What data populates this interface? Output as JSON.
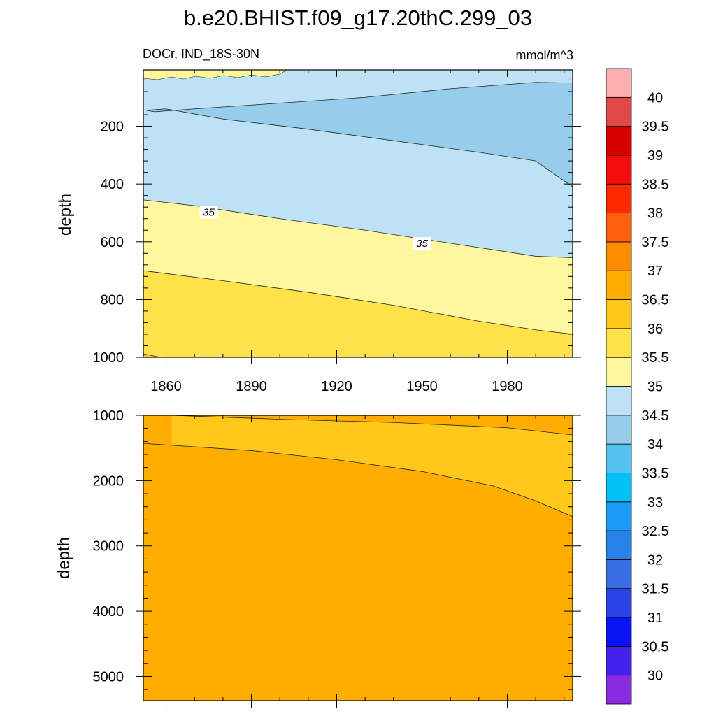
{
  "title": "b.e20.BHIST.f09_g17.20thC.299_03",
  "subtitle_left": "DOCr, IND_18S-30N",
  "subtitle_right": "mmol/m^3",
  "chart_data": [
    {
      "type": "heatmap",
      "name": "upper",
      "xlabel": "",
      "ylabel": "depth",
      "xlim": [
        1852,
        2003
      ],
      "ylim": [
        1000,
        5
      ],
      "xticks": [
        1860,
        1890,
        1920,
        1950,
        1980
      ],
      "yticks": [
        200,
        400,
        600,
        800,
        1000
      ],
      "contour_labels": [
        {
          "text": "35",
          "year": 1875,
          "depth": 500
        },
        {
          "text": "35",
          "year": 1950,
          "depth": 608
        }
      ],
      "boundaries": [
        {
          "level": 35.0,
          "points": [
            [
              1852,
              455
            ],
            [
              1870,
              475
            ],
            [
              1900,
              520
            ],
            [
              1930,
              560
            ],
            [
              1960,
              605
            ],
            [
              1990,
              650
            ],
            [
              2003,
              655
            ]
          ]
        },
        {
          "level": 35.5,
          "points": [
            [
              1852,
              700
            ],
            [
              1880,
              735
            ],
            [
              1910,
              775
            ],
            [
              1940,
              820
            ],
            [
              1970,
              875
            ],
            [
              1990,
              905
            ],
            [
              2003,
              920
            ]
          ]
        },
        {
          "level": 36.0,
          "points": [
            [
              1852,
              988
            ],
            [
              1858,
              1000
            ]
          ]
        },
        {
          "level": 34.0,
          "points": [
            [
              1853,
              145
            ],
            [
              1860,
              140
            ],
            [
              1880,
              175
            ],
            [
              1910,
              210
            ],
            [
              1940,
              250
            ],
            [
              1970,
              290
            ],
            [
              1990,
              320
            ],
            [
              2003,
              410
            ],
            [
              2003,
              50
            ],
            [
              1990,
              48
            ],
            [
              1960,
              70
            ],
            [
              1930,
              100
            ],
            [
              1900,
              120
            ],
            [
              1870,
              140
            ],
            [
              1856,
              150
            ]
          ],
          "closed": true
        }
      ],
      "fill_default": 34.5
    },
    {
      "type": "heatmap",
      "name": "lower",
      "xlabel": "",
      "ylabel": "depth",
      "xlim": [
        1852,
        2003
      ],
      "ylim": [
        5370,
        1000
      ],
      "xticks": [
        1860,
        1890,
        1920,
        1950,
        1980
      ],
      "yticks": [
        1000,
        2000,
        3000,
        4000,
        5000
      ],
      "boundaries": [
        {
          "level": 36.0,
          "points": [
            [
              1862,
              1000
            ],
            [
              1900,
              1060
            ],
            [
              1940,
              1110
            ],
            [
              1980,
              1190
            ],
            [
              2003,
              1300
            ]
          ]
        },
        {
          "level": 36.5,
          "points": [
            [
              1852,
              1430
            ],
            [
              1890,
              1540
            ],
            [
              1920,
              1680
            ],
            [
              1950,
              1860
            ],
            [
              1975,
              2080
            ],
            [
              1990,
              2310
            ],
            [
              2003,
              2550
            ]
          ]
        }
      ]
    }
  ],
  "colorbar": {
    "levels": [
      "30",
      "30.5",
      "31",
      "31.5",
      "32",
      "32.5",
      "33",
      "33.5",
      "34",
      "34.5",
      "35",
      "35.5",
      "36",
      "36.5",
      "37",
      "37.5",
      "38",
      "38.5",
      "39",
      "39.5",
      "40"
    ],
    "colors": [
      "#8a2be2",
      "#4422ee",
      "#0a14f5",
      "#2b44e8",
      "#3a6ee0",
      "#2882e8",
      "#1e9cf5",
      "#00c0f5",
      "#55c3f2",
      "#96cdec",
      "#bde2f5",
      "#fff79e",
      "#ffe24a",
      "#ffc81a",
      "#ffad00",
      "#ff8c00",
      "#ff6010",
      "#ff2a00",
      "#f50d0d",
      "#d60000",
      "#e04848",
      "#ffaeb0"
    ]
  }
}
